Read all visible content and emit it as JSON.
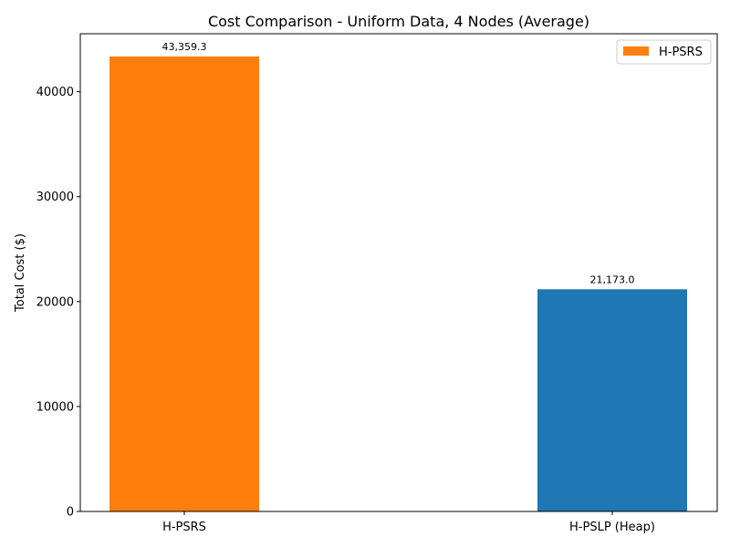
{
  "chart_data": {
    "type": "bar",
    "title": "Cost Comparison - Uniform Data, 4 Nodes (Average)",
    "xlabel": "",
    "ylabel": "Total Cost ($)",
    "categories": [
      "H-PSRS",
      "H-PSLP (Heap)"
    ],
    "values": [
      43359.3,
      21173.0
    ],
    "data_labels": [
      "43,359.3",
      "21,173.0"
    ],
    "bar_colors": [
      "#ff7f0e",
      "#1f77b4"
    ],
    "ylim": [
      0,
      45527
    ],
    "yticks": [
      0,
      10000,
      20000,
      30000,
      40000
    ],
    "ytick_labels": [
      "0",
      "10000",
      "20000",
      "30000",
      "40000"
    ],
    "grid": false,
    "legend": {
      "placement": "top-right",
      "entries": [
        {
          "label": "H-PSRS",
          "color": "#ff7f0e"
        }
      ]
    }
  }
}
